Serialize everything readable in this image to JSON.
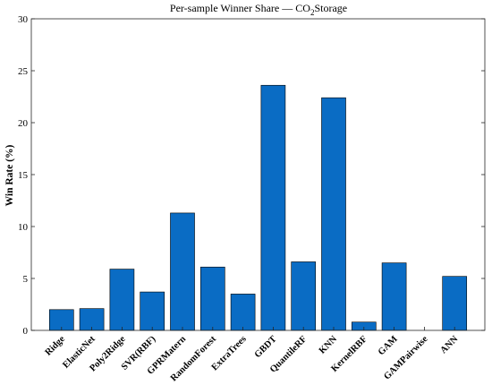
{
  "chart_data": {
    "type": "bar",
    "title_parts": {
      "before": "Per-sample Winner Share — CO",
      "subscript": "2",
      "after": "Storage"
    },
    "xlabel": "",
    "ylabel": "Win Rate (%)",
    "ylim": [
      0,
      30
    ],
    "yticks": [
      0,
      5,
      10,
      15,
      20,
      25,
      30
    ],
    "grid": false,
    "bar_color": "#0a6cc4",
    "categories": [
      "Ridge",
      "ElasticNet",
      "Poly2Ridge",
      "SVR(RBF)",
      "GPRMatern",
      "RandomForest",
      "ExtraTrees",
      "GBDT",
      "QuantileRF",
      "KNN",
      "KernelRBF",
      "GAM",
      "GAMPairwise",
      "ANN"
    ],
    "values": [
      2.0,
      2.1,
      5.9,
      3.7,
      11.3,
      6.1,
      3.5,
      23.6,
      6.6,
      22.4,
      0.8,
      6.5,
      0.0,
      5.2
    ]
  }
}
